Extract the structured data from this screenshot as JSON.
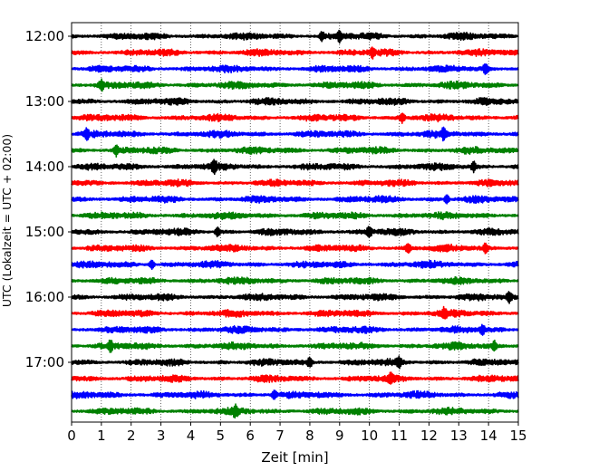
{
  "chart_data": {
    "type": "line",
    "xlabel": "Zeit  [min]",
    "ylabel": "UTC (Lokalzeit = UTC + 02:00)",
    "xlim": [
      0,
      15
    ],
    "x_ticks": [
      "0",
      "1",
      "2",
      "3",
      "4",
      "5",
      "6",
      "7",
      "8",
      "9",
      "10",
      "11",
      "12",
      "13",
      "14",
      "15"
    ],
    "y_ticks": [
      {
        "label": "12:00",
        "row": 0
      },
      {
        "label": "13:00",
        "row": 4
      },
      {
        "label": "14:00",
        "row": 8
      },
      {
        "label": "15:00",
        "row": 12
      },
      {
        "label": "16:00",
        "row": 16
      },
      {
        "label": "17:00",
        "row": 20
      }
    ],
    "grid": "vertical dotted at each minute",
    "row_interval_minutes": 15,
    "color_cycle": [
      "#000000",
      "#ff0000",
      "#0000ff",
      "#008000"
    ],
    "traces": [
      {
        "start": "12:00",
        "color": "#000000",
        "spikes": [
          8.4,
          9.0
        ]
      },
      {
        "start": "12:15",
        "color": "#ff0000",
        "spikes": [
          10.1
        ]
      },
      {
        "start": "12:30",
        "color": "#0000ff",
        "spikes": [
          13.9
        ]
      },
      {
        "start": "12:45",
        "color": "#008000",
        "spikes": [
          1.0
        ]
      },
      {
        "start": "13:00",
        "color": "#000000",
        "spikes": []
      },
      {
        "start": "13:15",
        "color": "#ff0000",
        "spikes": [
          11.1
        ]
      },
      {
        "start": "13:30",
        "color": "#0000ff",
        "spikes": [
          0.5,
          12.5
        ]
      },
      {
        "start": "13:45",
        "color": "#008000",
        "spikes": [
          1.5
        ]
      },
      {
        "start": "14:00",
        "color": "#000000",
        "spikes": [
          4.8,
          13.5
        ]
      },
      {
        "start": "14:15",
        "color": "#ff0000",
        "spikes": []
      },
      {
        "start": "14:30",
        "color": "#0000ff",
        "spikes": [
          12.6
        ]
      },
      {
        "start": "14:45",
        "color": "#008000",
        "spikes": []
      },
      {
        "start": "15:00",
        "color": "#000000",
        "spikes": [
          4.9,
          10.0
        ]
      },
      {
        "start": "15:15",
        "color": "#ff0000",
        "spikes": [
          11.3,
          13.9
        ]
      },
      {
        "start": "15:30",
        "color": "#0000ff",
        "spikes": [
          2.7
        ]
      },
      {
        "start": "15:45",
        "color": "#008000",
        "spikes": []
      },
      {
        "start": "16:00",
        "color": "#000000",
        "spikes": [
          14.7
        ]
      },
      {
        "start": "16:15",
        "color": "#ff0000",
        "spikes": [
          12.5
        ]
      },
      {
        "start": "16:30",
        "color": "#0000ff",
        "spikes": [
          13.8
        ]
      },
      {
        "start": "16:45",
        "color": "#008000",
        "spikes": [
          1.3,
          14.2
        ]
      },
      {
        "start": "17:00",
        "color": "#000000",
        "spikes": [
          8.0,
          11.0
        ]
      },
      {
        "start": "17:15",
        "color": "#ff0000",
        "spikes": [
          10.7
        ]
      },
      {
        "start": "17:30",
        "color": "#0000ff",
        "spikes": [
          6.8
        ]
      },
      {
        "start": "17:45",
        "color": "#008000",
        "spikes": [
          5.5
        ]
      }
    ]
  }
}
